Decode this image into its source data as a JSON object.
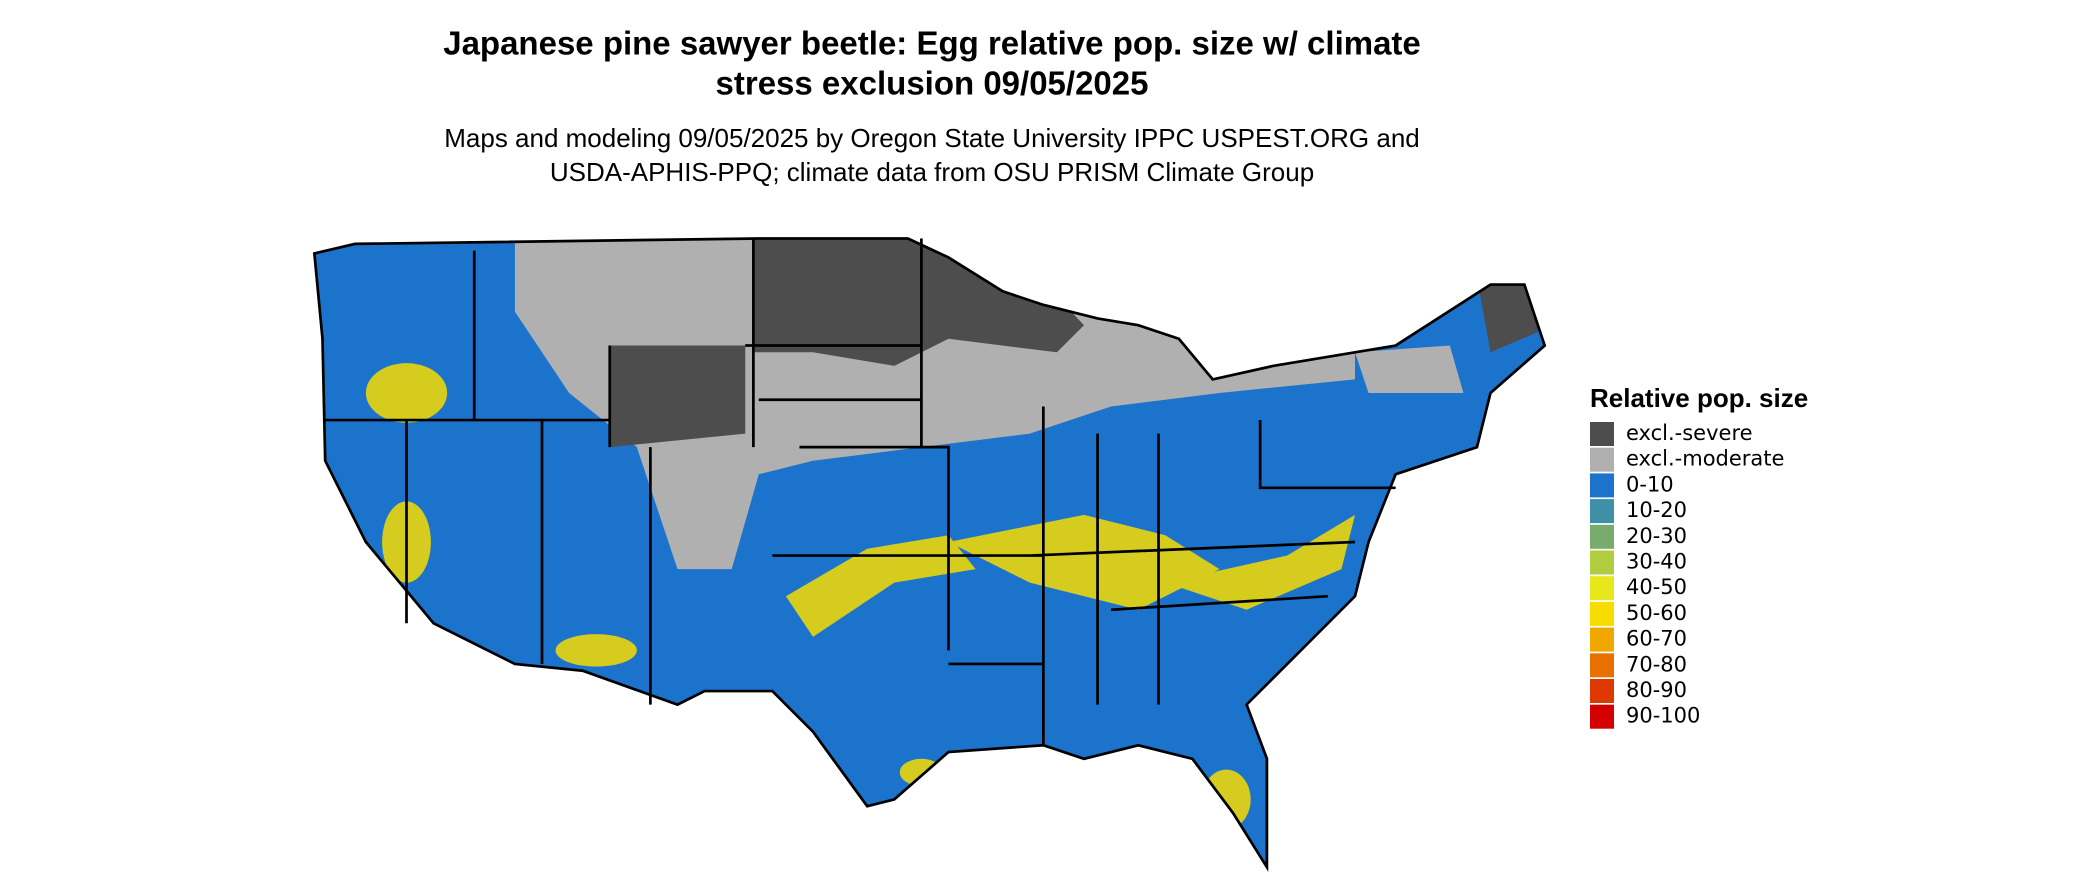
{
  "header": {
    "title_line1": "Japanese pine sawyer beetle: Egg relative pop. size w/ climate",
    "title_line2": "stress exclusion 09/05/2025",
    "subtitle_line1": "Maps and modeling 09/05/2025 by Oregon State University IPPC USPEST.ORG and",
    "subtitle_line2": "USDA-APHIS-PPQ; climate data from OSU PRISM Climate Group"
  },
  "legend": {
    "title": "Relative pop. size",
    "items": [
      {
        "label": "excl.-severe",
        "color": "#4d4d4d"
      },
      {
        "label": "excl.-moderate",
        "color": "#b0b0b0"
      },
      {
        "label": "0-10",
        "color": "#1c73cc"
      },
      {
        "label": "10-20",
        "color": "#3f8fa6"
      },
      {
        "label": "20-30",
        "color": "#78ac6e"
      },
      {
        "label": "30-40",
        "color": "#b2cc3f"
      },
      {
        "label": "40-50",
        "color": "#e6e81c"
      },
      {
        "label": "50-60",
        "color": "#f7dc00"
      },
      {
        "label": "60-70",
        "color": "#f0a800"
      },
      {
        "label": "70-80",
        "color": "#e87000"
      },
      {
        "label": "80-90",
        "color": "#dc3800"
      },
      {
        "label": "90-100",
        "color": "#d40000"
      }
    ]
  }
}
